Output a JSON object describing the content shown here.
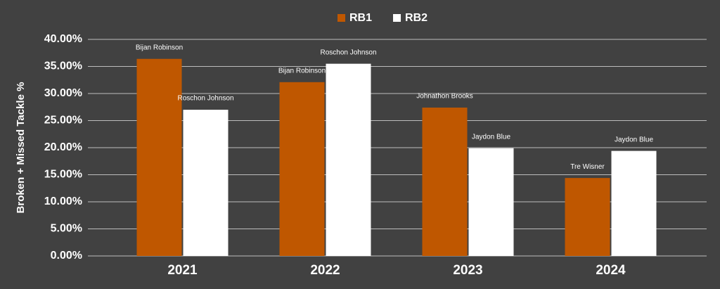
{
  "chart_data": {
    "type": "bar",
    "y_label": "Broken + Missed Tackle %",
    "categories": [
      "2021",
      "2022",
      "2023",
      "2024"
    ],
    "series": [
      {
        "name": "RB1",
        "color": "#bf5700",
        "values": [
          36.4,
          32.1,
          27.4,
          14.4
        ],
        "bar_labels": [
          "Bijan Robinson",
          "Bijan Robinson",
          "Johnathon Brooks",
          "Tre Wisner"
        ]
      },
      {
        "name": "RB2",
        "color": "#ffffff",
        "values": [
          27.0,
          35.5,
          19.9,
          19.4
        ],
        "bar_labels": [
          "Roschon Johnson",
          "Roschon Johnson",
          "Jaydon Blue",
          "Jaydon Blue"
        ]
      }
    ],
    "ylim": [
      0,
      40
    ],
    "yticks": [
      {
        "value": 0,
        "label": "0.00%"
      },
      {
        "value": 5,
        "label": "5.00%"
      },
      {
        "value": 10,
        "label": "10.00%"
      },
      {
        "value": 15,
        "label": "15.00%"
      },
      {
        "value": 20,
        "label": "20.00%"
      },
      {
        "value": 25,
        "label": "25.00%"
      },
      {
        "value": 30,
        "label": "30.00%"
      },
      {
        "value": 35,
        "label": "35.00%"
      },
      {
        "value": 40,
        "label": "40.00%"
      }
    ],
    "grid": true,
    "legend": "top"
  }
}
